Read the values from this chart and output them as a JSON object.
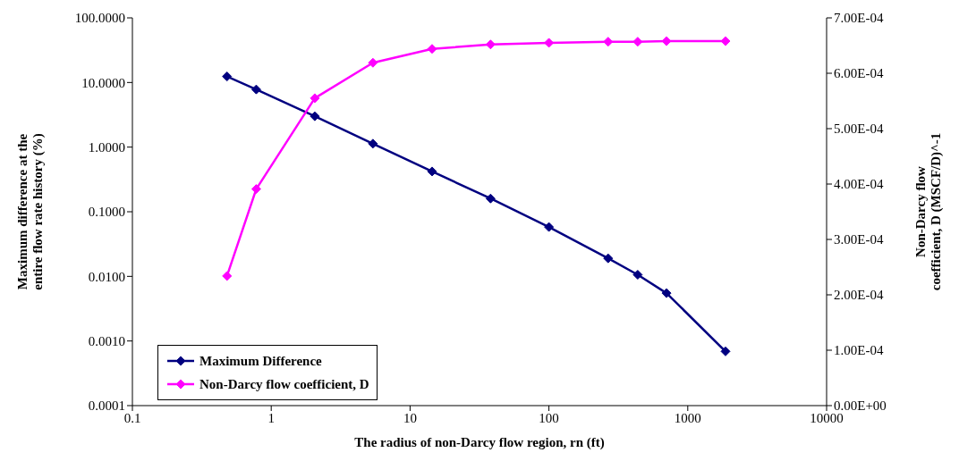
{
  "chart_data": {
    "type": "line",
    "xlabel": "The radius of non-Darcy flow region, rn (ft)",
    "ylabel": "Maximum difference at the entire flow rate history (%)",
    "y2label": "Non-Darcy flow coefficient, D (MSCF/D)^-1",
    "x": [
      0.48,
      0.78,
      2.06,
      5.4,
      14.4,
      38,
      100,
      267,
      436,
      703,
      1870
    ],
    "series": [
      {
        "name": "Maximum Difference",
        "color": "#000080",
        "values": [
          12.4,
          7.8,
          3.0,
          1.13,
          0.42,
          0.16,
          0.058,
          0.019,
          0.0106,
          0.0055,
          0.00069
        ]
      },
      {
        "name": "Non-Darcy flow coefficient, D",
        "color": "#ff00ff",
        "axis": "y2",
        "values": [
          0.000234,
          0.000391,
          0.000555,
          0.000619,
          0.000644,
          0.000652,
          0.000655,
          0.000657,
          0.000657,
          0.000658,
          0.000658
        ]
      }
    ],
    "xlim": [
      0.1,
      10000
    ],
    "xticks": [
      0.1,
      1,
      10,
      100,
      1000,
      10000
    ],
    "ylim": [
      0.0001,
      100
    ],
    "yticks": [
      {
        "value": 0.0001,
        "label": "0.0001"
      },
      {
        "value": 0.001,
        "label": "0.0010"
      },
      {
        "value": 0.01,
        "label": "0.0100"
      },
      {
        "value": 0.1,
        "label": "0.1000"
      },
      {
        "value": 1,
        "label": "1.0000"
      },
      {
        "value": 10,
        "label": "10.0000"
      },
      {
        "value": 100,
        "label": "100.0000"
      }
    ],
    "y2lim": [
      0,
      0.0007
    ],
    "y2ticks": [
      {
        "value": 0,
        "label": "0.00E+00"
      },
      {
        "value": 0.0001,
        "label": "1.00E-04"
      },
      {
        "value": 0.0002,
        "label": "2.00E-04"
      },
      {
        "value": 0.0003,
        "label": "3.00E-04"
      },
      {
        "value": 0.0004,
        "label": "4.00E-04"
      },
      {
        "value": 0.0005,
        "label": "5.00E-04"
      },
      {
        "value": 0.0006,
        "label": "6.00E-04"
      },
      {
        "value": 0.0007,
        "label": "7.00E-04"
      }
    ],
    "log": "xy",
    "grid": false,
    "legend": "bottom left",
    "marker": "diamond",
    "line_style": "solid"
  }
}
